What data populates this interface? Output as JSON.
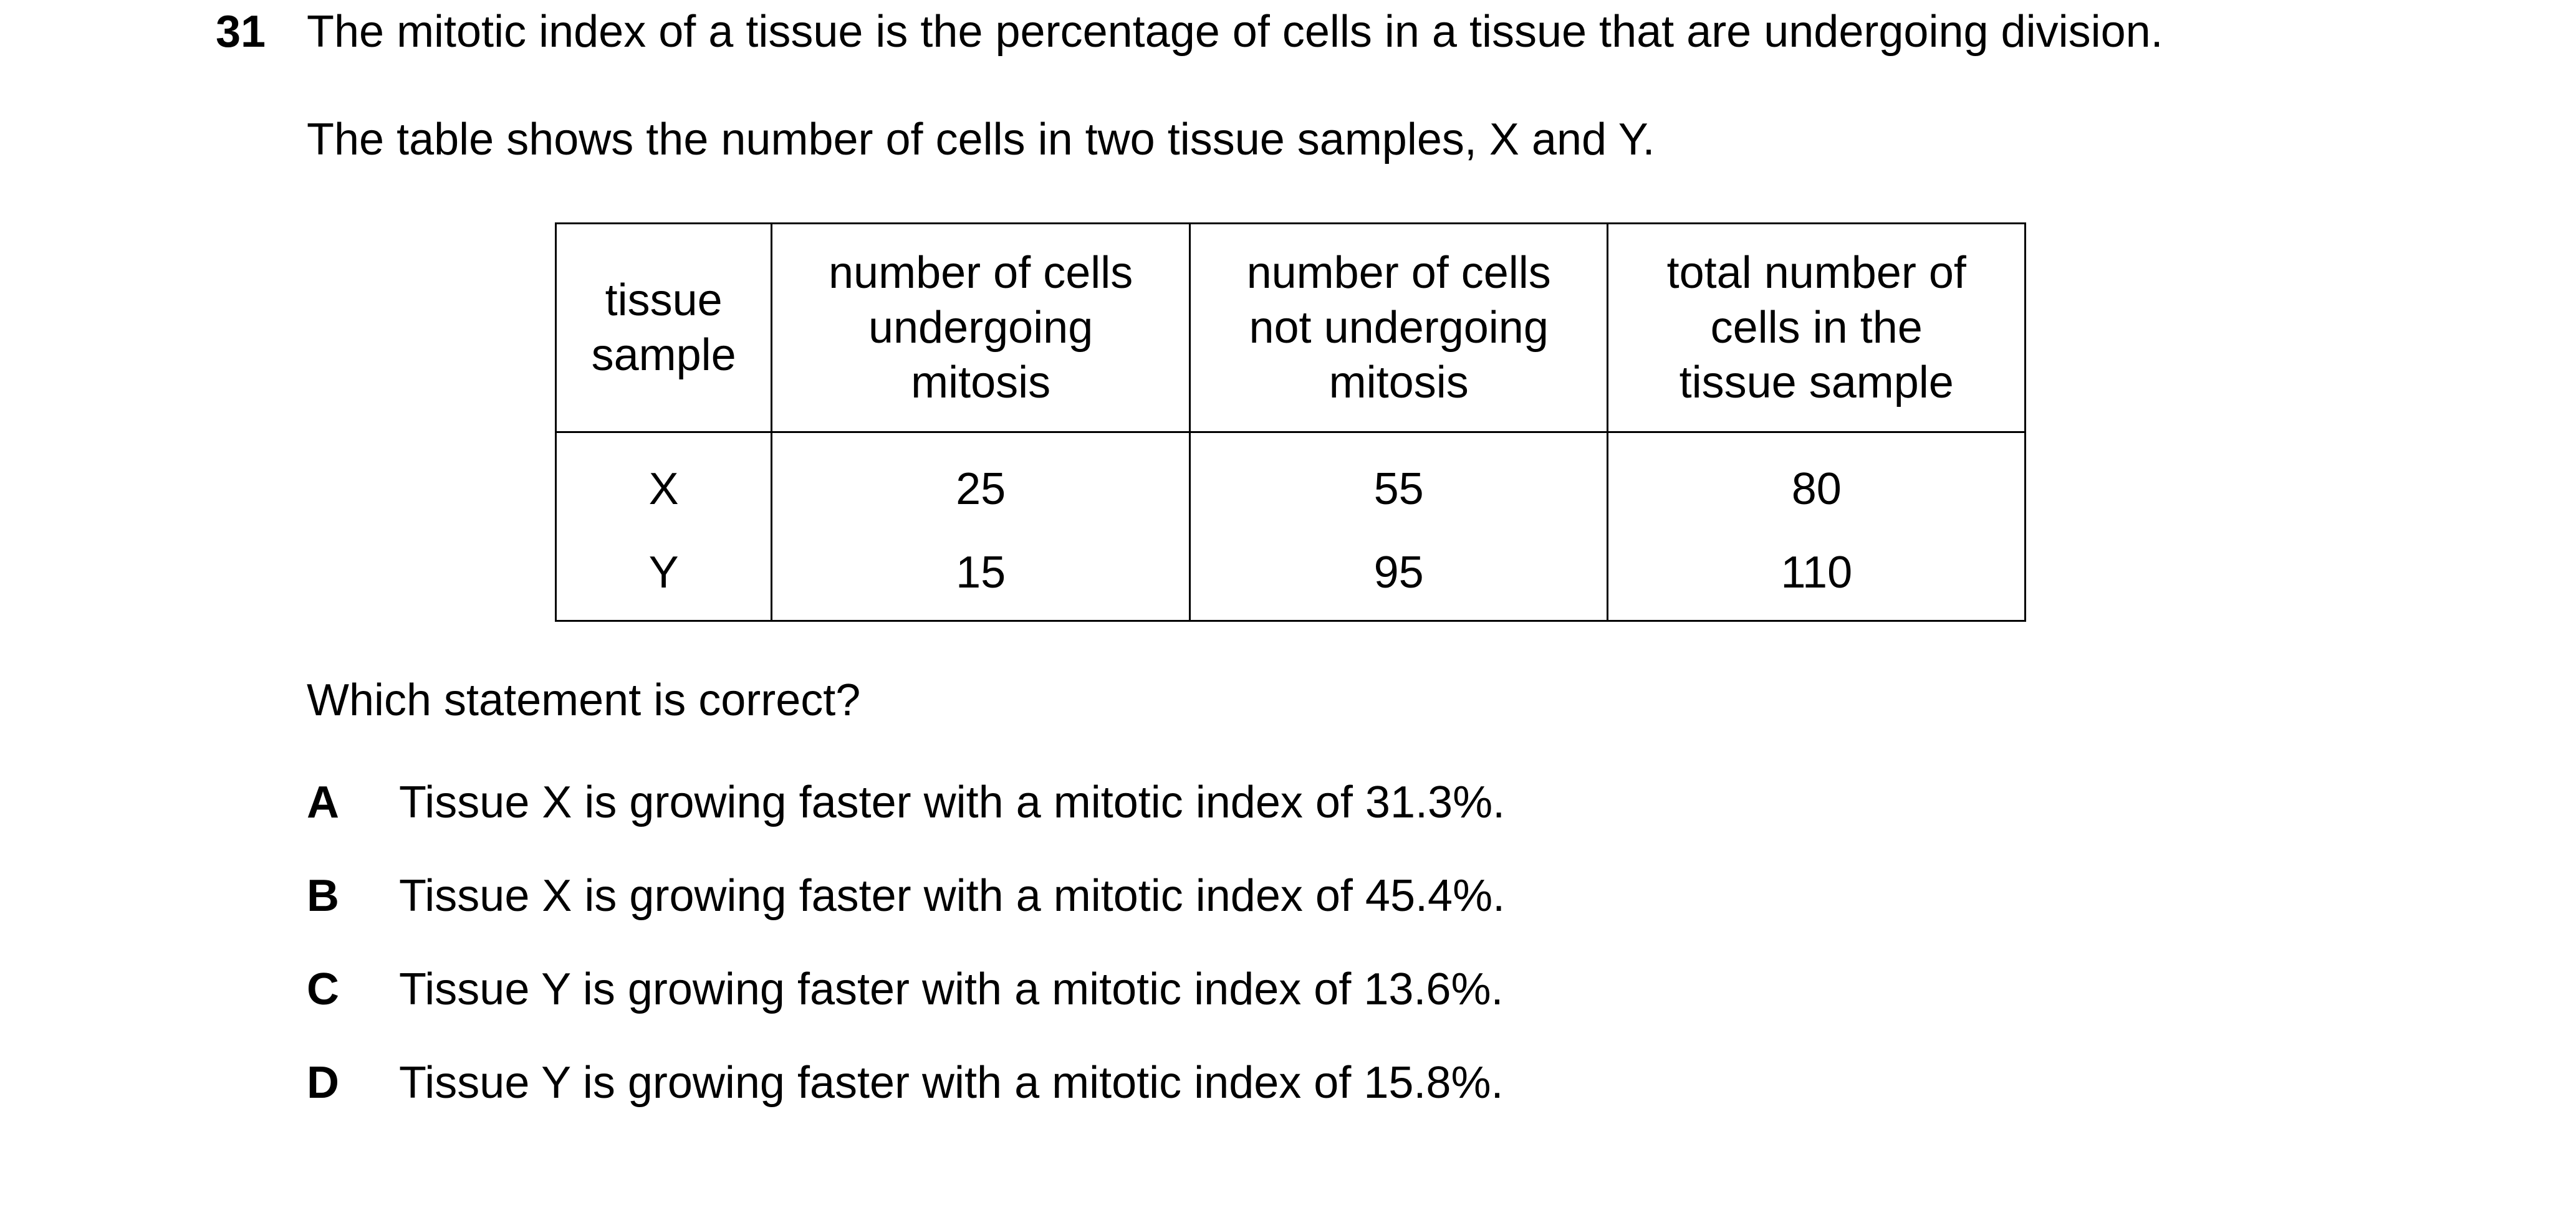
{
  "question": {
    "number": "31",
    "stem": "The mitotic index of a tissue is the percentage of cells in a tissue that are undergoing division.",
    "intro": "The table shows the number of cells in two tissue samples, X and Y.",
    "prompt": "Which statement is correct?"
  },
  "table": {
    "headers": [
      [
        "tissue",
        "sample"
      ],
      [
        "number of cells",
        "undergoing",
        "mitosis"
      ],
      [
        "number of cells",
        "not undergoing",
        "mitosis"
      ],
      [
        "total number of",
        "cells in the",
        "tissue sample"
      ]
    ],
    "rows": [
      [
        "X",
        "25",
        "55",
        "80"
      ],
      [
        "Y",
        "15",
        "95",
        "110"
      ]
    ]
  },
  "options": [
    {
      "letter": "A",
      "text": "Tissue X is growing faster with a mitotic index of 31.3%."
    },
    {
      "letter": "B",
      "text": "Tissue X is growing faster with a mitotic index of 45.4%."
    },
    {
      "letter": "C",
      "text": "Tissue Y is growing faster with a mitotic index of 13.6%."
    },
    {
      "letter": "D",
      "text": "Tissue Y is growing faster with a mitotic index of 15.8%."
    }
  ]
}
